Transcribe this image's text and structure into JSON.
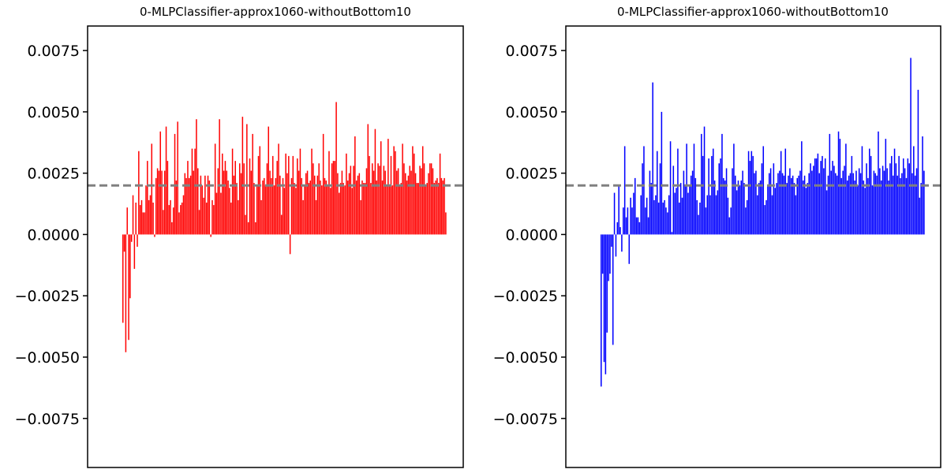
{
  "chart_data": [
    {
      "type": "bar",
      "title": "0-MLPClassifier-approx1060-withoutBottom10",
      "xlabel": "",
      "ylabel": "",
      "ylim": [
        -0.0095,
        0.0085
      ],
      "yticks": [
        0.0075,
        0.005,
        0.0025,
        0.0,
        -0.0025,
        -0.005,
        -0.0075
      ],
      "ytick_labels": [
        "0.0075",
        "0.0050",
        "0.0025",
        "0.0000",
        "−0.0025",
        "−0.0050",
        "−0.0075"
      ],
      "reference_line": 0.002,
      "grid": false,
      "bar_color": "#ff0000",
      "line_color": "#808080",
      "values": [
        -0.0036,
        -0.0007,
        -0.0048,
        0.0011,
        -0.0043,
        -0.0026,
        -0.0003,
        0.0016,
        -0.0014,
        0.0013,
        -0.0005,
        0.0034,
        0.0012,
        0.0014,
        0.0009,
        0.0009,
        0.002,
        0.003,
        0.0014,
        0.0016,
        0.0037,
        0.0013,
        -0.0001,
        0.0023,
        0.0027,
        0.0026,
        0.0042,
        0.0026,
        0.001,
        0.0026,
        0.0044,
        0.003,
        0.0012,
        0.0014,
        0.0005,
        0.0011,
        0.0041,
        0.0022,
        0.0046,
        0.0009,
        0.0012,
        0.0013,
        0.0016,
        0.0025,
        0.0023,
        0.003,
        0.0023,
        0.0024,
        0.0035,
        0.0026,
        0.0035,
        0.0047,
        0.0027,
        0.001,
        0.0024,
        0.002,
        0.0015,
        0.0024,
        0.0013,
        0.0024,
        0.0022,
        -0.0001,
        0.0014,
        0.0012,
        0.0037,
        0.0017,
        0.0027,
        0.0047,
        0.0017,
        0.0033,
        0.0026,
        0.003,
        0.0026,
        0.0022,
        0.0019,
        0.0013,
        0.0035,
        0.0024,
        0.003,
        0.0021,
        0.0014,
        0.0029,
        0.0025,
        0.0048,
        0.0029,
        0.0008,
        0.0045,
        0.0005,
        0.0031,
        0.0026,
        0.0041,
        0.0021,
        0.0005,
        0.002,
        0.0032,
        0.0036,
        0.0014,
        0.0022,
        0.0023,
        0.002,
        0.0029,
        0.0044,
        0.0026,
        0.0023,
        0.0032,
        0.002,
        0.0023,
        0.003,
        0.0037,
        0.0024,
        0.0008,
        0.0023,
        0.0019,
        0.0033,
        0.0025,
        0.0032,
        -0.0008,
        0.0023,
        0.0032,
        0.0021,
        0.0019,
        0.0031,
        0.0026,
        0.0035,
        0.0023,
        0.0014,
        0.002,
        0.0025,
        0.0026,
        0.0021,
        0.0022,
        0.0035,
        0.0029,
        0.0024,
        0.0014,
        0.0024,
        0.0029,
        0.0022,
        0.002,
        0.0041,
        0.0023,
        0.0022,
        0.002,
        0.0034,
        0.0019,
        0.0029,
        0.003,
        0.003,
        0.0054,
        0.0025,
        0.0017,
        0.0021,
        0.0026,
        0.0021,
        0.002,
        0.0033,
        0.0022,
        0.0025,
        0.0028,
        0.0019,
        0.0028,
        0.004,
        0.0022,
        0.0024,
        0.0025,
        0.0014,
        0.0022,
        0.0021,
        0.0021,
        0.0027,
        0.0045,
        0.0032,
        0.0021,
        0.0029,
        0.0026,
        0.0043,
        0.0022,
        0.0029,
        0.0028,
        0.0038,
        0.0022,
        0.0028,
        0.0026,
        0.002,
        0.0039,
        0.002,
        0.0032,
        0.002,
        0.0036,
        0.0034,
        0.0026,
        0.0027,
        0.002,
        0.0021,
        0.0037,
        0.0029,
        0.0025,
        0.0022,
        0.0024,
        0.0028,
        0.0026,
        0.0036,
        0.0033,
        0.0025,
        0.0021,
        0.0021,
        0.0028,
        0.0027,
        0.0036,
        0.0029,
        0.002,
        0.0021,
        0.0025,
        0.0029,
        0.0029,
        0.0027,
        0.0021,
        0.0022,
        0.0023,
        0.0021,
        0.0033,
        0.0023,
        0.0022,
        0.0023,
        0.0009
      ]
    },
    {
      "type": "bar",
      "title": "0-MLPClassifier-approx1060-withoutBottom10",
      "xlabel": "",
      "ylabel": "",
      "ylim": [
        -0.0095,
        0.0085
      ],
      "yticks": [
        0.0075,
        0.005,
        0.0025,
        0.0,
        -0.0025,
        -0.005,
        -0.0075
      ],
      "ytick_labels": [
        "0.0075",
        "0.0050",
        "0.0025",
        "0.0000",
        "−0.0025",
        "−0.0050",
        "−0.0075"
      ],
      "reference_line": 0.002,
      "grid": false,
      "bar_color": "#0000ff",
      "line_color": "#808080",
      "values": [
        -0.0062,
        -0.0016,
        -0.0052,
        -0.0057,
        -0.004,
        -0.0019,
        -0.0016,
        -0.0005,
        -0.0045,
        0.0017,
        -0.0009,
        0.0005,
        0.002,
        0.0003,
        -0.0007,
        0.0011,
        0.0036,
        0.0007,
        0.0011,
        -0.0012,
        0.0015,
        0.0011,
        0.0017,
        0.0023,
        0.0007,
        0.0007,
        0.0005,
        0.0016,
        0.0029,
        0.0036,
        0.0011,
        0.0015,
        0.0007,
        0.0026,
        0.0021,
        0.0062,
        0.0014,
        0.0016,
        0.0034,
        0.0013,
        0.0029,
        0.005,
        0.0013,
        0.0014,
        0.0011,
        0.0009,
        0.0016,
        0.0038,
        0.0001,
        0.0028,
        0.0017,
        0.0019,
        0.0035,
        0.0013,
        0.0021,
        0.0015,
        0.0026,
        0.002,
        0.0037,
        0.0017,
        0.002,
        0.0024,
        0.0026,
        0.0037,
        0.0023,
        0.0014,
        0.0008,
        0.0013,
        0.0041,
        0.0032,
        0.0044,
        0.0011,
        0.0016,
        0.0031,
        0.0016,
        0.0032,
        0.0035,
        0.0022,
        0.0016,
        0.0018,
        0.0029,
        0.0031,
        0.0041,
        0.0023,
        0.0022,
        0.0027,
        0.0015,
        0.0007,
        0.0011,
        0.0027,
        0.0037,
        0.0024,
        0.0018,
        0.0022,
        0.002,
        0.0022,
        0.0026,
        0.0021,
        0.0011,
        0.0014,
        0.0034,
        0.003,
        0.0034,
        0.0032,
        0.0025,
        0.0026,
        0.0016,
        0.0021,
        0.0022,
        0.0029,
        0.0036,
        0.0012,
        0.0014,
        0.002,
        0.0025,
        0.0027,
        0.0016,
        0.0029,
        0.0019,
        0.0021,
        0.0025,
        0.0026,
        0.0034,
        0.0025,
        0.0024,
        0.0035,
        0.0021,
        0.0024,
        0.0027,
        0.0023,
        0.0024,
        0.0021,
        0.0016,
        0.0023,
        0.0024,
        0.0026,
        0.0038,
        0.0022,
        0.0024,
        0.0019,
        0.0021,
        0.0025,
        0.0029,
        0.0026,
        0.0028,
        0.0031,
        0.0031,
        0.0033,
        0.0025,
        0.003,
        0.0032,
        0.0027,
        0.0031,
        0.0018,
        0.0024,
        0.0041,
        0.0026,
        0.003,
        0.0028,
        0.0025,
        0.0024,
        0.0042,
        0.0039,
        0.0023,
        0.0026,
        0.0028,
        0.0037,
        0.0022,
        0.0024,
        0.0025,
        0.0032,
        0.0025,
        0.0022,
        0.0026,
        0.002,
        0.0027,
        0.0025,
        0.0036,
        0.0022,
        0.0019,
        0.0029,
        0.0023,
        0.0035,
        0.0032,
        0.002,
        0.0026,
        0.0025,
        0.0024,
        0.0042,
        0.0027,
        0.0022,
        0.0028,
        0.0026,
        0.0039,
        0.0027,
        0.0022,
        0.0029,
        0.0032,
        0.0024,
        0.0035,
        0.0029,
        0.0024,
        0.0032,
        0.0023,
        0.0025,
        0.0031,
        0.0027,
        0.0023,
        0.0031,
        0.0029,
        0.0072,
        0.0025,
        0.0036,
        0.0024,
        0.0027,
        0.0059,
        0.0015,
        0.0021,
        0.004,
        0.0026
      ]
    }
  ]
}
